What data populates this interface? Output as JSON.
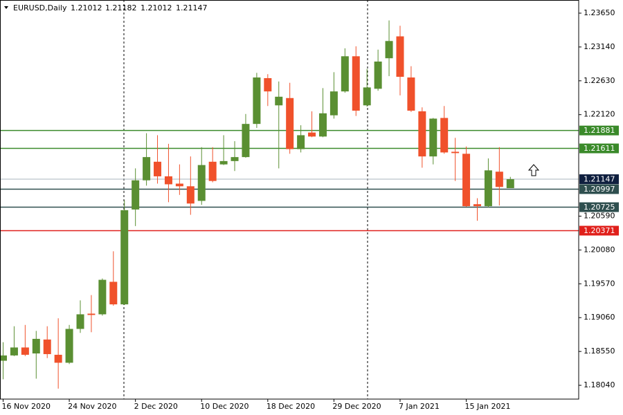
{
  "chart_data": {
    "type": "candlestick",
    "title": "EURUSD,Daily",
    "categories": [
      "16 Nov 2020",
      null,
      null,
      null,
      null,
      null,
      "24 Nov 2020",
      null,
      null,
      null,
      null,
      null,
      "2 Dec 2020",
      null,
      null,
      null,
      null,
      null,
      "10 Dec 2020",
      null,
      null,
      null,
      null,
      null,
      "18 Dec 2020",
      null,
      null,
      null,
      null,
      null,
      "29 Dec 2020",
      null,
      null,
      null,
      null,
      null,
      "7 Jan 2021",
      null,
      null,
      null,
      null,
      null,
      "15 Jan 2021",
      null,
      null,
      null,
      null
    ],
    "open": [
      1.1841,
      1.1849,
      1.1861,
      1.1852,
      1.1873,
      1.185,
      1.1838,
      1.1889,
      1.1912,
      1.1911,
      1.196,
      1.1926,
      1.2069,
      1.2113,
      1.2141,
      1.2119,
      1.2108,
      1.2104,
      1.2082,
      1.2141,
      1.2137,
      1.2142,
      1.2148,
      1.2198,
      1.2267,
      1.2226,
      1.2237,
      1.216,
      1.2185,
      1.2179,
      1.2211,
      1.2247,
      1.23,
      1.2226,
      1.2251,
      1.2297,
      1.233,
      1.2268,
      1.2217,
      1.2149,
      1.2207,
      1.2156,
      1.2153,
      1.2077,
      1.2074,
      1.2126,
      1.21012
    ],
    "high": [
      1.1869,
      1.1893,
      1.1895,
      1.1886,
      1.1893,
      1.1905,
      1.1895,
      1.1932,
      1.194,
      1.1965,
      1.2006,
      1.2083,
      1.2131,
      1.2184,
      1.2181,
      1.2168,
      1.2137,
      1.2149,
      1.2163,
      1.2163,
      1.2181,
      1.2172,
      1.2213,
      1.2275,
      1.2273,
      1.2262,
      1.226,
      1.2196,
      1.2217,
      1.2252,
      1.2276,
      1.2312,
      1.2315,
      1.2281,
      1.231,
      1.2354,
      1.2346,
      1.2285,
      1.2223,
      1.2207,
      1.2225,
      1.2177,
      1.2164,
      1.2086,
      1.2146,
      1.2163,
      1.21182
    ],
    "low": [
      1.1813,
      1.1848,
      1.1848,
      1.1814,
      1.1845,
      1.1799,
      1.1836,
      1.1883,
      1.1884,
      1.1909,
      1.1924,
      1.1925,
      1.2044,
      1.2105,
      1.2108,
      1.208,
      1.2091,
      1.2061,
      1.2076,
      1.211,
      1.2136,
      1.2127,
      1.2147,
      1.2192,
      1.2225,
      1.2131,
      1.2153,
      1.2155,
      1.2178,
      1.2178,
      1.2206,
      1.2245,
      1.221,
      1.2224,
      1.2248,
      1.227,
      1.2241,
      1.2216,
      1.2132,
      1.2137,
      1.2153,
      1.2112,
      1.2073,
      1.2052,
      1.2072,
      1.2075,
      1.21012
    ],
    "close": [
      1.1849,
      1.1861,
      1.185,
      1.1874,
      1.1851,
      1.1838,
      1.1889,
      1.1911,
      1.191,
      1.1963,
      1.1926,
      1.2068,
      1.2113,
      1.2148,
      1.2119,
      1.2107,
      1.2104,
      1.2078,
      1.2136,
      1.2112,
      1.2142,
      1.2148,
      1.2198,
      1.2268,
      1.2247,
      1.2239,
      1.216,
      1.2181,
      1.2179,
      1.2214,
      1.2247,
      1.23,
      1.2218,
      1.2253,
      1.2292,
      1.2323,
      1.2269,
      1.2218,
      1.2149,
      1.2206,
      1.2155,
      1.2154,
      1.2074,
      1.2074,
      1.2128,
      1.2103,
      1.21147
    ],
    "up_color": "#5a8f32",
    "down_color": "#f0512b",
    "ylim": [
      1.17832,
      1.23848
    ],
    "yticks": [
      {
        "value": 1.2365,
        "label": "1.23650"
      },
      {
        "value": 1.2314,
        "label": "1.23140"
      },
      {
        "value": 1.2263,
        "label": "1.22630"
      },
      {
        "value": 1.2212,
        "label": "1.22120"
      },
      {
        "value": 1.2059,
        "label": "1.20590"
      },
      {
        "value": 1.2008,
        "label": "1.20080"
      },
      {
        "value": 1.1957,
        "label": "1.19570"
      },
      {
        "value": 1.1906,
        "label": "1.19060"
      },
      {
        "value": 1.1855,
        "label": "1.18550"
      },
      {
        "value": 1.1804,
        "label": "1.18040"
      }
    ],
    "levels": [
      {
        "value": 1.21881,
        "color": "#3a8a2a"
      },
      {
        "value": 1.21611,
        "color": "#3a8a2a"
      },
      {
        "value": 1.20997,
        "color": "#2f4f4f"
      },
      {
        "value": 1.20725,
        "color": "#2f4f4f"
      },
      {
        "value": 1.20371,
        "color": "#e0201b"
      }
    ],
    "bid_color": "#0f1f3f"
  }
}
